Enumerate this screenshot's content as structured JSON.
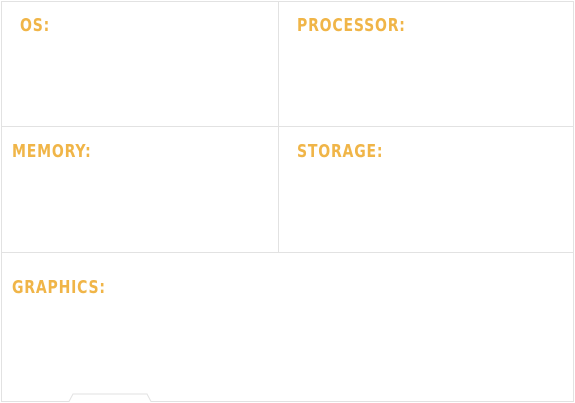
{
  "specs": {
    "os_label": "OS:",
    "processor_label": "PROCESSOR:",
    "memory_label": "MEMORY:",
    "storage_label": "STORAGE:",
    "graphics_label": "GRAPHICS:"
  },
  "colors": {
    "label": "#f0b548",
    "border": "#e2e2e2"
  }
}
